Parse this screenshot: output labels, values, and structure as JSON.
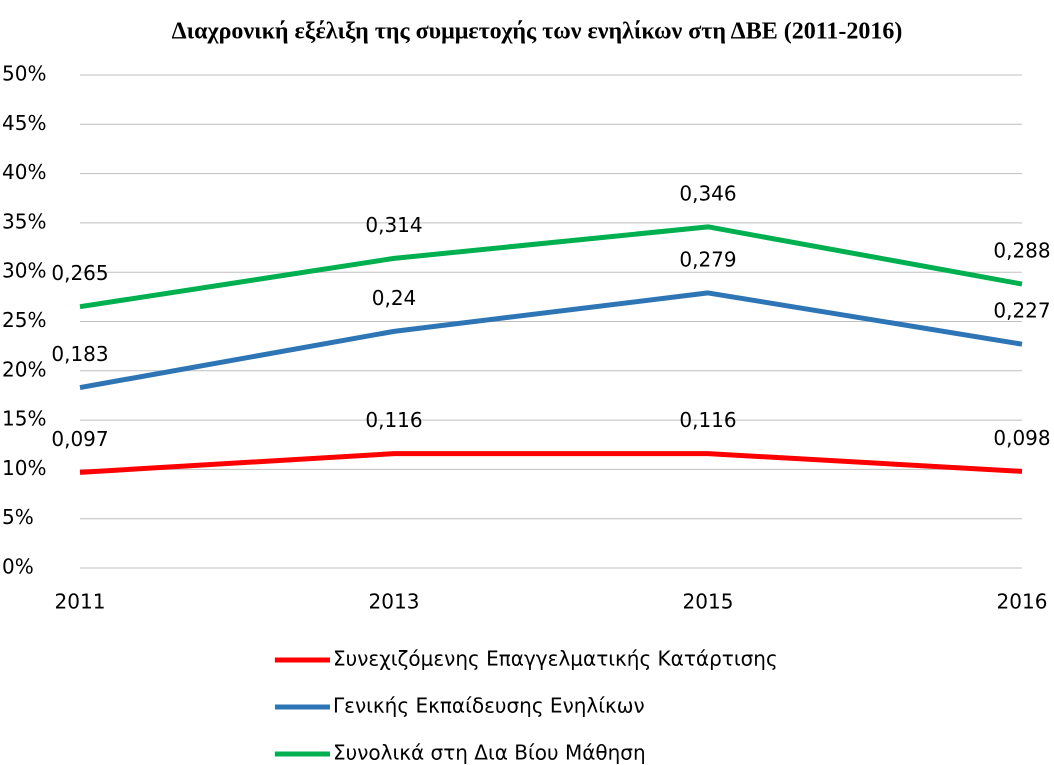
{
  "chart_data": {
    "type": "line",
    "title": "Διαχρονική εξέλιξη της συμμετοχής των ενηλίκων στη ΔΒΕ (2011-2016)",
    "categories": [
      "2011",
      "2013",
      "2015",
      "2016"
    ],
    "series": [
      {
        "name": "Συνεχιζόμενης Επαγγελματικής Κατάρτισης",
        "color": "#ff0000",
        "values": [
          0.097,
          0.116,
          0.116,
          0.098
        ],
        "value_labels": [
          "0,097",
          "0,116",
          "0,116",
          "0,098"
        ]
      },
      {
        "name": "Γενικής Εκπαίδευσης Ενηλίκων",
        "color": "#2e75b6",
        "values": [
          0.183,
          0.24,
          0.279,
          0.227
        ],
        "value_labels": [
          "0,183",
          "0,24",
          "0,279",
          "0,227"
        ]
      },
      {
        "name": "Συνολικά στη Δια Βίου Μάθηση",
        "color": "#00b050",
        "values": [
          0.265,
          0.314,
          0.346,
          0.288
        ],
        "value_labels": [
          "0,265",
          "0,314",
          "0,346",
          "0,288"
        ]
      }
    ],
    "ylim": [
      0,
      0.5
    ],
    "yticks": [
      {
        "value": 0,
        "label": "0%"
      },
      {
        "value": 0.05,
        "label": "5%"
      },
      {
        "value": 0.1,
        "label": "10%"
      },
      {
        "value": 0.15,
        "label": "15%"
      },
      {
        "value": 0.2,
        "label": "20%"
      },
      {
        "value": 0.25,
        "label": "25%"
      },
      {
        "value": 0.3,
        "label": "30%"
      },
      {
        "value": 0.35,
        "label": "35%"
      },
      {
        "value": 0.4,
        "label": "40%"
      },
      {
        "value": 0.45,
        "label": "45%"
      },
      {
        "value": 0.5,
        "label": "50%"
      }
    ],
    "grid": true
  }
}
